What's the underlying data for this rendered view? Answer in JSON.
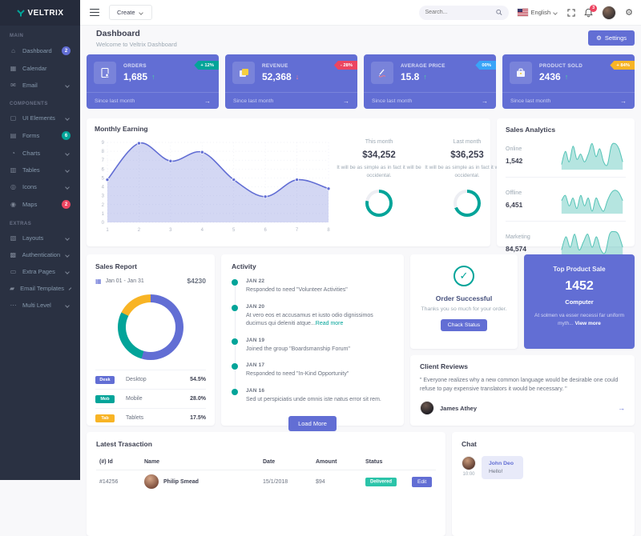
{
  "colors": {
    "primary": "#626ed4",
    "success": "#02a499",
    "danger": "#ec4561",
    "info": "#38a4f8",
    "warning": "#f8b425",
    "sidebar": "#2a3142"
  },
  "sidebar": {
    "logo": "VELTRIX",
    "groups": [
      {
        "title": "MAIN",
        "items": [
          {
            "label": "Dashboard",
            "icon": "⌂",
            "badge": "2",
            "badge_color": "#626ed4"
          },
          {
            "label": "Calendar",
            "icon": "▦"
          },
          {
            "label": "Email",
            "icon": "✉",
            "chevron": true
          }
        ]
      },
      {
        "title": "COMPONENTS",
        "items": [
          {
            "label": "UI Elements",
            "icon": "▢",
            "chevron": true
          },
          {
            "label": "Forms",
            "icon": "▤",
            "badge": "6",
            "badge_color": "#02a499"
          },
          {
            "label": "Charts",
            "icon": "◔",
            "chevron": true
          },
          {
            "label": "Tables",
            "icon": "▥",
            "chevron": true
          },
          {
            "label": "Icons",
            "icon": "◎",
            "chevron": true
          },
          {
            "label": "Maps",
            "icon": "◉",
            "badge": "2",
            "badge_color": "#ec4561"
          }
        ]
      },
      {
        "title": "EXTRAS",
        "items": [
          {
            "label": "Layouts",
            "icon": "▧",
            "chevron": true
          },
          {
            "label": "Authentication",
            "icon": "▩",
            "chevron": true
          },
          {
            "label": "Extra Pages",
            "icon": "▭",
            "chevron": true
          },
          {
            "label": "Email Templates",
            "icon": "▰",
            "chevron": true
          },
          {
            "label": "Multi Level",
            "icon": "⋯",
            "chevron": true
          }
        ]
      }
    ]
  },
  "topbar": {
    "create_label": "Create",
    "search_placeholder": "Search...",
    "language": "English",
    "bell_badge": "3",
    "gear_icon": "⚙"
  },
  "page": {
    "title": "Dashboard",
    "subtitle": "Welcome to Veltrix Dashboard",
    "settings_label": "Settings",
    "settings_icon": "⚙"
  },
  "stats": [
    {
      "name": "ORDERS",
      "value": "1,685",
      "trend": "up",
      "arrow": "↑",
      "badge": "+ 12%",
      "badge_color": "#02a499",
      "note": "Since last month",
      "arrow_link": "→"
    },
    {
      "name": "REVENUE",
      "value": "52,368",
      "trend": "down",
      "arrow": "↓",
      "badge": "- 28%",
      "badge_color": "#ec4561",
      "note": "Since last month",
      "arrow_link": "→"
    },
    {
      "name": "AVERAGE PRICE",
      "value": "15.8",
      "trend": "up",
      "arrow": "↑",
      "badge": "00%",
      "badge_color": "#38a4f8",
      "note": "Since last month",
      "arrow_link": "→"
    },
    {
      "name": "PRODUCT SOLD",
      "value": "2436",
      "trend": "up",
      "arrow": "↑",
      "badge": "+ 84%",
      "badge_color": "#f8b425",
      "note": "Since last month",
      "arrow_link": "→"
    }
  ],
  "monthly": {
    "title": "Monthly Earning",
    "chart": {
      "type": "area",
      "labels": [
        "1",
        "2",
        "3",
        "4",
        "5",
        "6",
        "7",
        "8"
      ],
      "values": [
        4.8,
        8.9,
        6.9,
        7.9,
        4.8,
        2.9,
        4.8,
        3.8
      ],
      "ymax": 9
    },
    "this": {
      "label": "This month",
      "value": "$34,252",
      "desc": "It will be as simple as in fact it will be occidental.",
      "percent": 78
    },
    "last": {
      "label": "Last month",
      "value": "$36,253",
      "desc": "It will be as simple as in fact it will be occidental.",
      "percent": 69
    }
  },
  "sales_analytics": {
    "title": "Sales Analytics",
    "rows": [
      {
        "label": "Online",
        "value": "1,542",
        "spark": [
          2,
          7,
          3,
          9,
          4,
          6,
          3,
          6,
          10,
          5,
          8,
          3,
          2,
          9,
          10,
          8,
          3
        ]
      },
      {
        "label": "Offline",
        "value": "6,451",
        "spark": [
          5,
          7,
          3,
          6,
          2,
          7,
          3,
          6,
          1,
          6,
          3,
          1,
          5,
          8,
          9,
          8,
          5
        ]
      },
      {
        "label": "Marketing",
        "value": "84,574",
        "spark": [
          3,
          8,
          4,
          9,
          3,
          6,
          9,
          4,
          8,
          3,
          2,
          9,
          10,
          9,
          4
        ]
      }
    ]
  },
  "sales_report": {
    "title": "Sales Report",
    "range": "Jan 01 - Jan 31",
    "total": "$4230",
    "cal_icon": "▦",
    "segments": [
      {
        "tag": "Desk",
        "label": "Desktop",
        "pct": "54.5%",
        "value": 54.5,
        "color": "#626ed4"
      },
      {
        "tag": "Mob",
        "label": "Mobile",
        "pct": "28.0%",
        "value": 28.0,
        "color": "#02a499"
      },
      {
        "tag": "Tab",
        "label": "Tablets",
        "pct": "17.5%",
        "value": 17.5,
        "color": "#f8b425"
      }
    ]
  },
  "activity": {
    "title": "Activity",
    "items": [
      {
        "date": "JAN 22",
        "text": "Responded to need \"Volunteer Activities\""
      },
      {
        "date": "JAN 20",
        "text": "At vero eos et accusamus et iusto odio dignissimos ducimus qui deleniti atque...",
        "more": "Read more"
      },
      {
        "date": "JAN 19",
        "text": "Joined the group \"Boardsmanship Forum\""
      },
      {
        "date": "JAN 17",
        "text": "Responded to need \"In-Kind Opportunity\""
      },
      {
        "date": "JAN 16",
        "text": "Sed ut perspiciatis unde omnis iste natus error sit rem."
      }
    ],
    "load_more": "Load More"
  },
  "order": {
    "title": "Order Successful",
    "check": "✓",
    "subtitle": "Thanks you so much for your order.",
    "button": "Chack Status"
  },
  "top_product": {
    "title": "Top Product Sale",
    "value": "1452",
    "name": "Computer",
    "desc": "At solmen va esser necessi far uniform myth...",
    "link": "View more"
  },
  "reviews": {
    "title": "Client Reviews",
    "quote": "\" Everyone realizes why a new common language would be desirable one could refuse to pay expensive translators it would be necessary. \"",
    "author": "James Athey",
    "arrow": "→"
  },
  "transactions": {
    "title": "Latest Trasaction",
    "headers": [
      "(#) Id",
      "Name",
      "Date",
      "Amount",
      "Status",
      ""
    ],
    "rows": [
      {
        "id": "#14256",
        "name": "Philip Smead",
        "date": "15/1/2018",
        "amount": "$94",
        "status": "Delivered",
        "action": "Edit"
      }
    ]
  },
  "chat": {
    "title": "Chat",
    "messages": [
      {
        "name": "John Deo",
        "text": "Hello!",
        "time": "10:00"
      }
    ]
  }
}
